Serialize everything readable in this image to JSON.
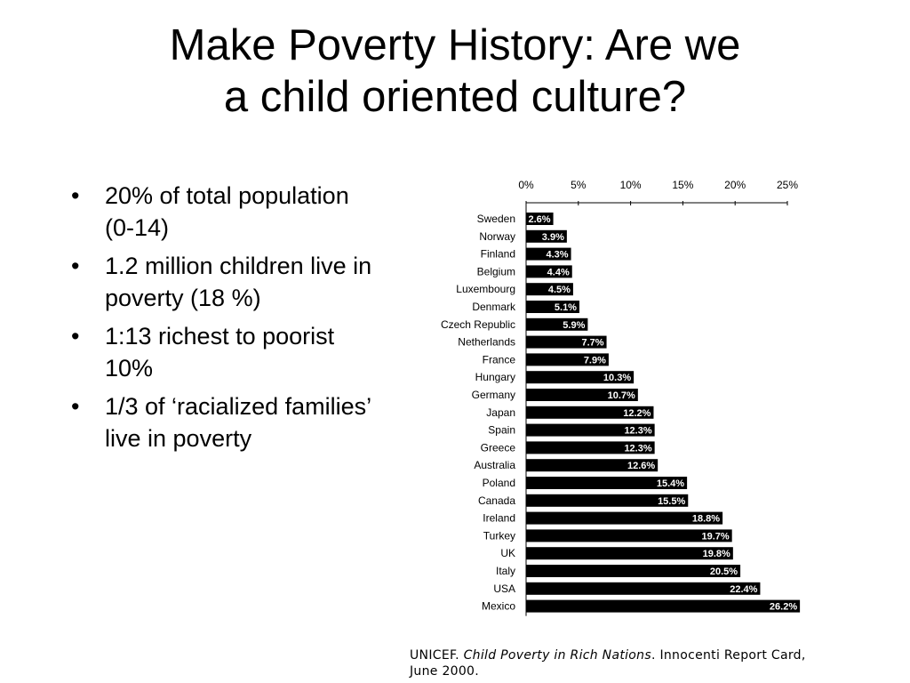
{
  "slide": {
    "title_line1": "Make Poverty History: Are we",
    "title_line2": "a child oriented culture?",
    "bullets": [
      "20% of total population (0-14)",
      "1.2 million children live in poverty (18 %)",
      "1:13 richest to poorist 10%",
      "1/3 of ‘racialized families’ live in poverty"
    ],
    "bullet_char": "•"
  },
  "source": {
    "prefix": "UNICEF. ",
    "title": "Child Poverty in Rich Nations",
    "suffix": ". Innocenti Report Card, June 2000."
  },
  "chart_data": {
    "type": "bar",
    "orientation": "horizontal",
    "title": "",
    "xlabel": "",
    "ylabel": "",
    "xlim": [
      0,
      25
    ],
    "x_ticks": [
      "0%",
      "5%",
      "10%",
      "15%",
      "20%",
      "25%"
    ],
    "x_axis_position": "top",
    "grid": false,
    "legend": "none",
    "categories": [
      "Sweden",
      "Norway",
      "Finland",
      "Belgium",
      "Luxembourg",
      "Denmark",
      "Czech Republic",
      "Netherlands",
      "France",
      "Hungary",
      "Germany",
      "Japan",
      "Spain",
      "Greece",
      "Australia",
      "Poland",
      "Canada",
      "Ireland",
      "Turkey",
      "UK",
      "Italy",
      "USA",
      "Mexico"
    ],
    "values": [
      2.6,
      3.9,
      4.3,
      4.4,
      4.5,
      5.1,
      5.9,
      7.7,
      7.9,
      10.3,
      10.7,
      12.2,
      12.3,
      12.3,
      12.6,
      15.4,
      15.5,
      18.8,
      19.7,
      19.8,
      20.5,
      22.4,
      26.2
    ],
    "value_labels": [
      "2.6%",
      "3.9%",
      "4.3%",
      "4.4%",
      "4.5%",
      "5.1%",
      "5.9%",
      "7.7%",
      "7.9%",
      "10.3%",
      "10.7%",
      "12.2%",
      "12.3%",
      "12.3%",
      "12.6%",
      "15.4%",
      "15.5%",
      "18.8%",
      "19.7%",
      "19.8%",
      "20.5%",
      "22.4%",
      "26.2%"
    ],
    "bar_color": "#000000",
    "label_color": "#ffffff"
  }
}
